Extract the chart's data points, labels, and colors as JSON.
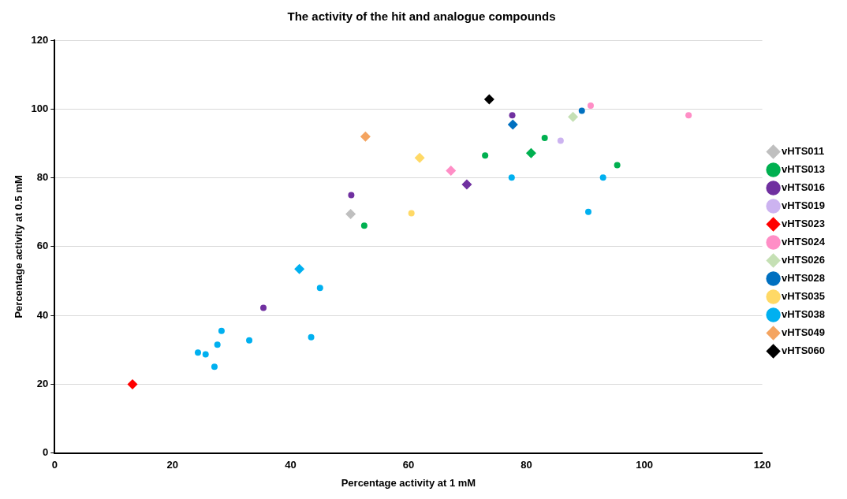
{
  "chart_data": {
    "type": "scatter",
    "title": "The activity of the hit and analogue compounds",
    "xlabel": "Percentage activity at 1 mM",
    "ylabel": "Percentage activity at 0.5 mM",
    "xlim": [
      0,
      120
    ],
    "ylim": [
      0,
      120
    ],
    "xticks": [
      0,
      20,
      40,
      60,
      80,
      100,
      120
    ],
    "yticks": [
      0,
      20,
      40,
      60,
      80,
      100,
      120
    ],
    "grid": "y",
    "legend": "right",
    "series": [
      {
        "name": "vHTS011",
        "color": "#bfbfbf",
        "marker": "diamond",
        "x": [
          50.2
        ],
        "values": [
          69.5
        ]
      },
      {
        "name": "vHTS013",
        "color": "#00b050",
        "marker": "circle",
        "x": [
          52.5,
          73.0,
          83.1,
          95.4
        ],
        "values": [
          66.1,
          86.5,
          91.6,
          83.7
        ]
      },
      {
        "name": "vHTS016",
        "color": "#7030a0",
        "marker": "circle",
        "x": [
          35.4,
          50.3,
          77.6
        ],
        "values": [
          42.2,
          75.0,
          98.2
        ]
      },
      {
        "name": "vHTS019",
        "color": "#ccb3f0",
        "marker": "circle",
        "x": [
          85.8
        ],
        "values": [
          90.8
        ]
      },
      {
        "name": "vHTS023",
        "color": "#ff0000",
        "marker": "diamond",
        "x": [
          13.2
        ],
        "values": [
          20.0
        ]
      },
      {
        "name": "vHTS024",
        "color": "#ff8ec6",
        "marker": "circle",
        "x": [
          90.9,
          107.5
        ],
        "values": [
          101.0,
          98.2
        ]
      },
      {
        "name": "vHTS026",
        "color": "#c5e0b4",
        "marker": "diamond",
        "x": [
          87.9
        ],
        "values": [
          97.7
        ]
      },
      {
        "name": "vHTS028",
        "color": "#0070c0",
        "marker": "circle",
        "x": [
          89.4
        ],
        "values": [
          99.5
        ]
      },
      {
        "name": "vHTS035",
        "color": "#ffd966",
        "marker": "circle",
        "x": [
          60.5
        ],
        "values": [
          69.7
        ]
      },
      {
        "name": "vHTS038",
        "color": "#00b0f0",
        "marker": "circle",
        "x": [
          45.0,
          43.5,
          28.3,
          33.0,
          27.6,
          24.3,
          25.6,
          27.1,
          77.5,
          93.0,
          90.5
        ],
        "values": [
          48.0,
          33.7,
          35.5,
          32.8,
          31.5,
          29.2,
          28.7,
          25.1,
          80.1,
          80.1,
          70.1
        ]
      },
      {
        "name": "vHTS049",
        "color": "#f4a460",
        "marker": "diamond",
        "x": [
          52.7
        ],
        "values": [
          92.0
        ]
      },
      {
        "name": "vHTS060",
        "color": "#000000",
        "marker": "diamond",
        "x": [
          73.7
        ],
        "values": [
          102.8
        ]
      },
      {
        "color": "#00b050",
        "marker": "diamond",
        "x": [
          80.8
        ],
        "values": [
          87.2
        ]
      },
      {
        "color": "#7030a0",
        "marker": "diamond",
        "x": [
          69.9
        ],
        "values": [
          78.1
        ]
      },
      {
        "color": "#ff8ec6",
        "marker": "diamond",
        "x": [
          67.2
        ],
        "values": [
          82.1
        ]
      },
      {
        "color": "#0070c0",
        "marker": "diamond",
        "x": [
          77.7
        ],
        "values": [
          95.5
        ]
      },
      {
        "color": "#ffd966",
        "marker": "diamond",
        "x": [
          61.9
        ],
        "values": [
          85.8
        ]
      },
      {
        "color": "#00b0f0",
        "marker": "diamond",
        "x": [
          41.5
        ],
        "values": [
          53.5
        ]
      }
    ]
  }
}
